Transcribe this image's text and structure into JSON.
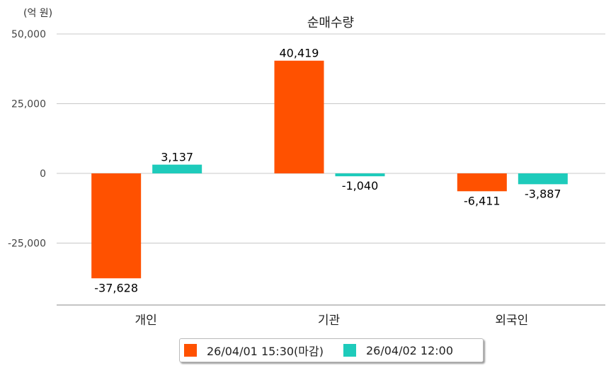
{
  "chart_data": {
    "type": "bar",
    "title": "순매수량",
    "unit_label": "(억 원)",
    "categories": [
      "개인",
      "기관",
      "외국인"
    ],
    "series": [
      {
        "name": "26/04/01 15:30(마감)",
        "color": "#ff5100",
        "values": [
          -37628,
          40419,
          -6411
        ],
        "labels": [
          "-37,628",
          "40,419",
          "-6,411"
        ]
      },
      {
        "name": "26/04/02 12:00",
        "color": "#1ecbbb",
        "values": [
          3137,
          -1040,
          -3887
        ],
        "labels": [
          "3,137",
          "-1,040",
          "-3,887"
        ]
      }
    ],
    "yticks": [
      50000,
      25000,
      0,
      -25000
    ],
    "ytick_labels": [
      "50,000",
      "25,000",
      "0",
      "-25,000"
    ],
    "ylim": [
      -47200,
      50000
    ],
    "grid": true,
    "legend_position": "bottom"
  }
}
